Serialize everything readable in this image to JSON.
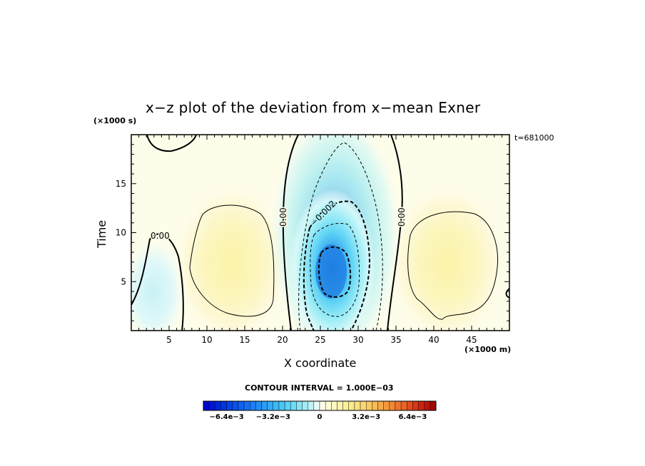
{
  "chart_data": {
    "type": "heatmap",
    "title": "x−z plot of the deviation from x−mean Exner",
    "xlabel": "X coordinate",
    "ylabel": "Time",
    "x_unit": "(×1000 m)",
    "y_unit": "(×1000 s)",
    "time_label": "t=681000",
    "contour_interval_label": "CONTOUR INTERVAL = 1.000E−03",
    "contour_interval": 0.001,
    "xlim": [
      0,
      50
    ],
    "ylim": [
      0,
      20
    ],
    "x_ticks": [
      5,
      10,
      15,
      20,
      25,
      30,
      35,
      40,
      45
    ],
    "y_ticks": [
      5,
      10,
      15
    ],
    "contour_labels": [
      "0.00",
      "0.00",
      "−0.002",
      "0.00"
    ],
    "colorbar": {
      "min": -0.008,
      "max": 0.008,
      "tick_labels": [
        "−6.4e−3",
        "−3.2e−3",
        "0",
        "3.2e−3",
        "6.4e−3"
      ],
      "tick_values": [
        -0.0064,
        -0.0032,
        0,
        0.0032,
        0.0064
      ]
    },
    "features": [
      {
        "kind": "negative-center",
        "x": 26.5,
        "y": 6.0,
        "value": -0.0045
      },
      {
        "kind": "positive-center",
        "x": 12.5,
        "y": 7.0,
        "value": 0.0015
      },
      {
        "kind": "positive-center",
        "x": 41.5,
        "y": 7.0,
        "value": 0.0015
      },
      {
        "kind": "weak-negative",
        "x": 3.5,
        "y": 3.0,
        "value": -0.0006
      }
    ],
    "grid": false,
    "legend": "colorbar-bottom"
  }
}
